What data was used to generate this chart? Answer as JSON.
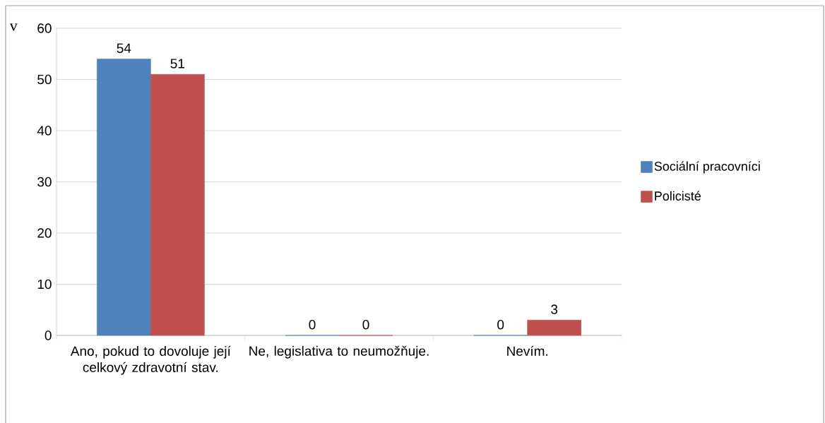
{
  "chart_data": {
    "type": "bar",
    "categories": [
      "Ano, pokud to dovoluje její celkový zdravotní stav.",
      "Ne, legislativa to neumožňuje.",
      "Nevím."
    ],
    "series": [
      {
        "name": "Sociální pracovníci",
        "color": "#4f81bd",
        "values": [
          54,
          0,
          0
        ]
      },
      {
        "name": "Policisté",
        "color": "#c0504d",
        "values": [
          51,
          0,
          3
        ]
      }
    ],
    "ylim": [
      0,
      60
    ],
    "yticks": [
      0,
      10,
      20,
      30,
      40,
      50,
      60
    ],
    "grid": "y",
    "legend": "right",
    "data_labels": true,
    "annotations": [
      "v"
    ]
  }
}
